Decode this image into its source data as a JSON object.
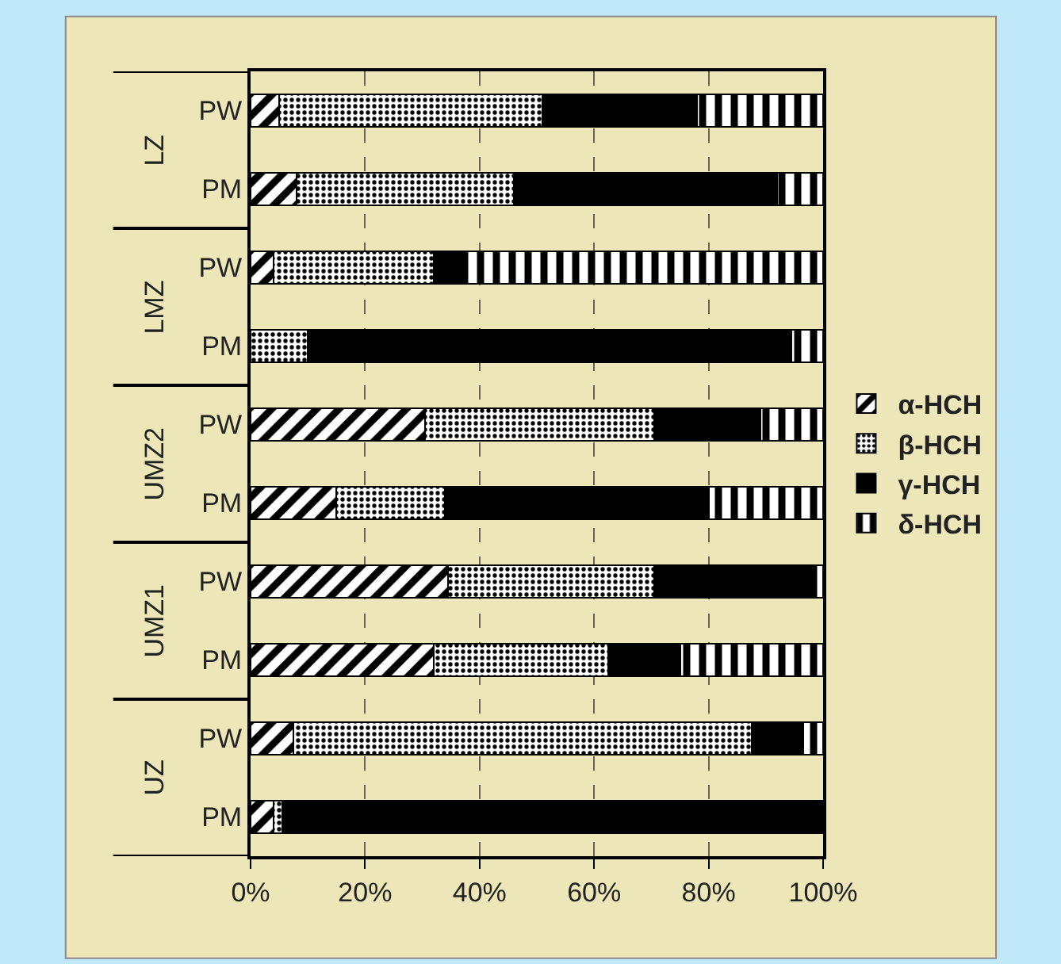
{
  "chart_data": {
    "type": "bar",
    "orientation": "horizontal",
    "stacked": true,
    "categories": [
      "PW",
      "PM",
      "PW",
      "PM",
      "PW",
      "PM",
      "PW",
      "PM",
      "PW",
      "PM"
    ],
    "annotations": [
      "LZ",
      "LMZ",
      "UMZ2",
      "UMZ1",
      "UZ"
    ],
    "series": [
      {
        "name": "α-HCH",
        "color": "#000000",
        "values": [
          5,
          8,
          4,
          0,
          30.5,
          15,
          34.5,
          32,
          7.5,
          4
        ]
      },
      {
        "name": "β-HCH",
        "color": "#000000",
        "values": [
          46,
          38,
          28,
          10,
          40,
          19,
          36,
          30.5,
          80,
          1.5
        ]
      },
      {
        "name": "γ-HCH",
        "color": "#000000",
        "values": [
          27,
          46,
          5.5,
          84.5,
          18.5,
          46,
          27.5,
          12.5,
          9,
          94.5
        ]
      },
      {
        "name": "δ-HCH",
        "color": "#000000",
        "values": [
          22,
          8,
          62.5,
          5.5,
          11,
          20,
          2,
          25,
          3.5,
          0
        ]
      }
    ],
    "xlim": [
      0,
      100
    ],
    "xticks": [
      {
        "value": 0,
        "label": "0%"
      },
      {
        "value": 20,
        "label": "20%"
      },
      {
        "value": 40,
        "label": "40%"
      },
      {
        "value": 60,
        "label": "60%"
      },
      {
        "value": 80,
        "label": "80%"
      },
      {
        "value": 100,
        "label": "100%"
      }
    ],
    "grid": "x",
    "legend": "right"
  }
}
